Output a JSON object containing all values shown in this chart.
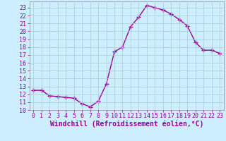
{
  "x": [
    0,
    1,
    2,
    3,
    4,
    5,
    6,
    7,
    8,
    9,
    10,
    11,
    12,
    13,
    14,
    15,
    16,
    17,
    18,
    19,
    20,
    21,
    22,
    23
  ],
  "y": [
    12.5,
    12.5,
    11.8,
    11.7,
    11.6,
    11.5,
    10.8,
    10.4,
    11.1,
    13.3,
    17.4,
    18.0,
    20.6,
    21.8,
    23.3,
    23.0,
    22.7,
    22.2,
    21.5,
    20.7,
    18.6,
    17.6,
    17.6,
    17.2
  ],
  "line_color": "#990099",
  "marker": "+",
  "marker_size": 4,
  "bg_color": "#cceeff",
  "grid_color": "#aacccc",
  "xlabel": "Windchill (Refroidissement éolien,°C)",
  "xlim": [
    -0.5,
    23.5
  ],
  "ylim": [
    10,
    23.8
  ],
  "yticks": [
    10,
    11,
    12,
    13,
    14,
    15,
    16,
    17,
    18,
    19,
    20,
    21,
    22,
    23
  ],
  "xticks": [
    0,
    1,
    2,
    3,
    4,
    5,
    6,
    7,
    8,
    9,
    10,
    11,
    12,
    13,
    14,
    15,
    16,
    17,
    18,
    19,
    20,
    21,
    22,
    23
  ],
  "tick_color": "#990099",
  "label_color": "#990099",
  "label_fontsize": 7,
  "tick_fontsize": 6
}
